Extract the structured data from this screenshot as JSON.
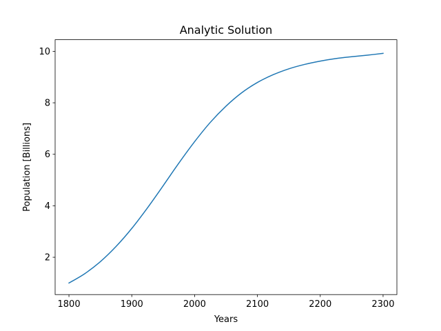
{
  "chart_data": {
    "type": "line",
    "title": "Analytic Solution",
    "xlabel": "Years",
    "ylabel": "Population [Billions]",
    "xlim": [
      1778,
      2322
    ],
    "ylim": [
      0.55,
      10.45
    ],
    "xticks": [
      {
        "value": 1800,
        "label": "1800"
      },
      {
        "value": 1900,
        "label": "1900"
      },
      {
        "value": 2000,
        "label": "2000"
      },
      {
        "value": 2100,
        "label": "2100"
      },
      {
        "value": 2200,
        "label": "2200"
      },
      {
        "value": 2300,
        "label": "2300"
      }
    ],
    "yticks": [
      {
        "value": 2,
        "label": "2"
      },
      {
        "value": 4,
        "label": "4"
      },
      {
        "value": 6,
        "label": "6"
      },
      {
        "value": 8,
        "label": "8"
      },
      {
        "value": 10,
        "label": "10"
      }
    ],
    "grid": false,
    "series": [
      {
        "color": "#1f77b4",
        "x": [
          1800,
          1825,
          1850,
          1875,
          1900,
          1925,
          1950,
          1975,
          2000,
          2025,
          2050,
          2075,
          2100,
          2125,
          2150,
          2175,
          2200,
          2225,
          2250,
          2275,
          2300
        ],
        "y": [
          1.0,
          1.36,
          1.83,
          2.42,
          3.12,
          3.92,
          4.78,
          5.66,
          6.49,
          7.24,
          7.87,
          8.39,
          8.79,
          9.09,
          9.32,
          9.49,
          9.62,
          9.72,
          9.79,
          9.85,
          9.92
        ]
      }
    ]
  }
}
